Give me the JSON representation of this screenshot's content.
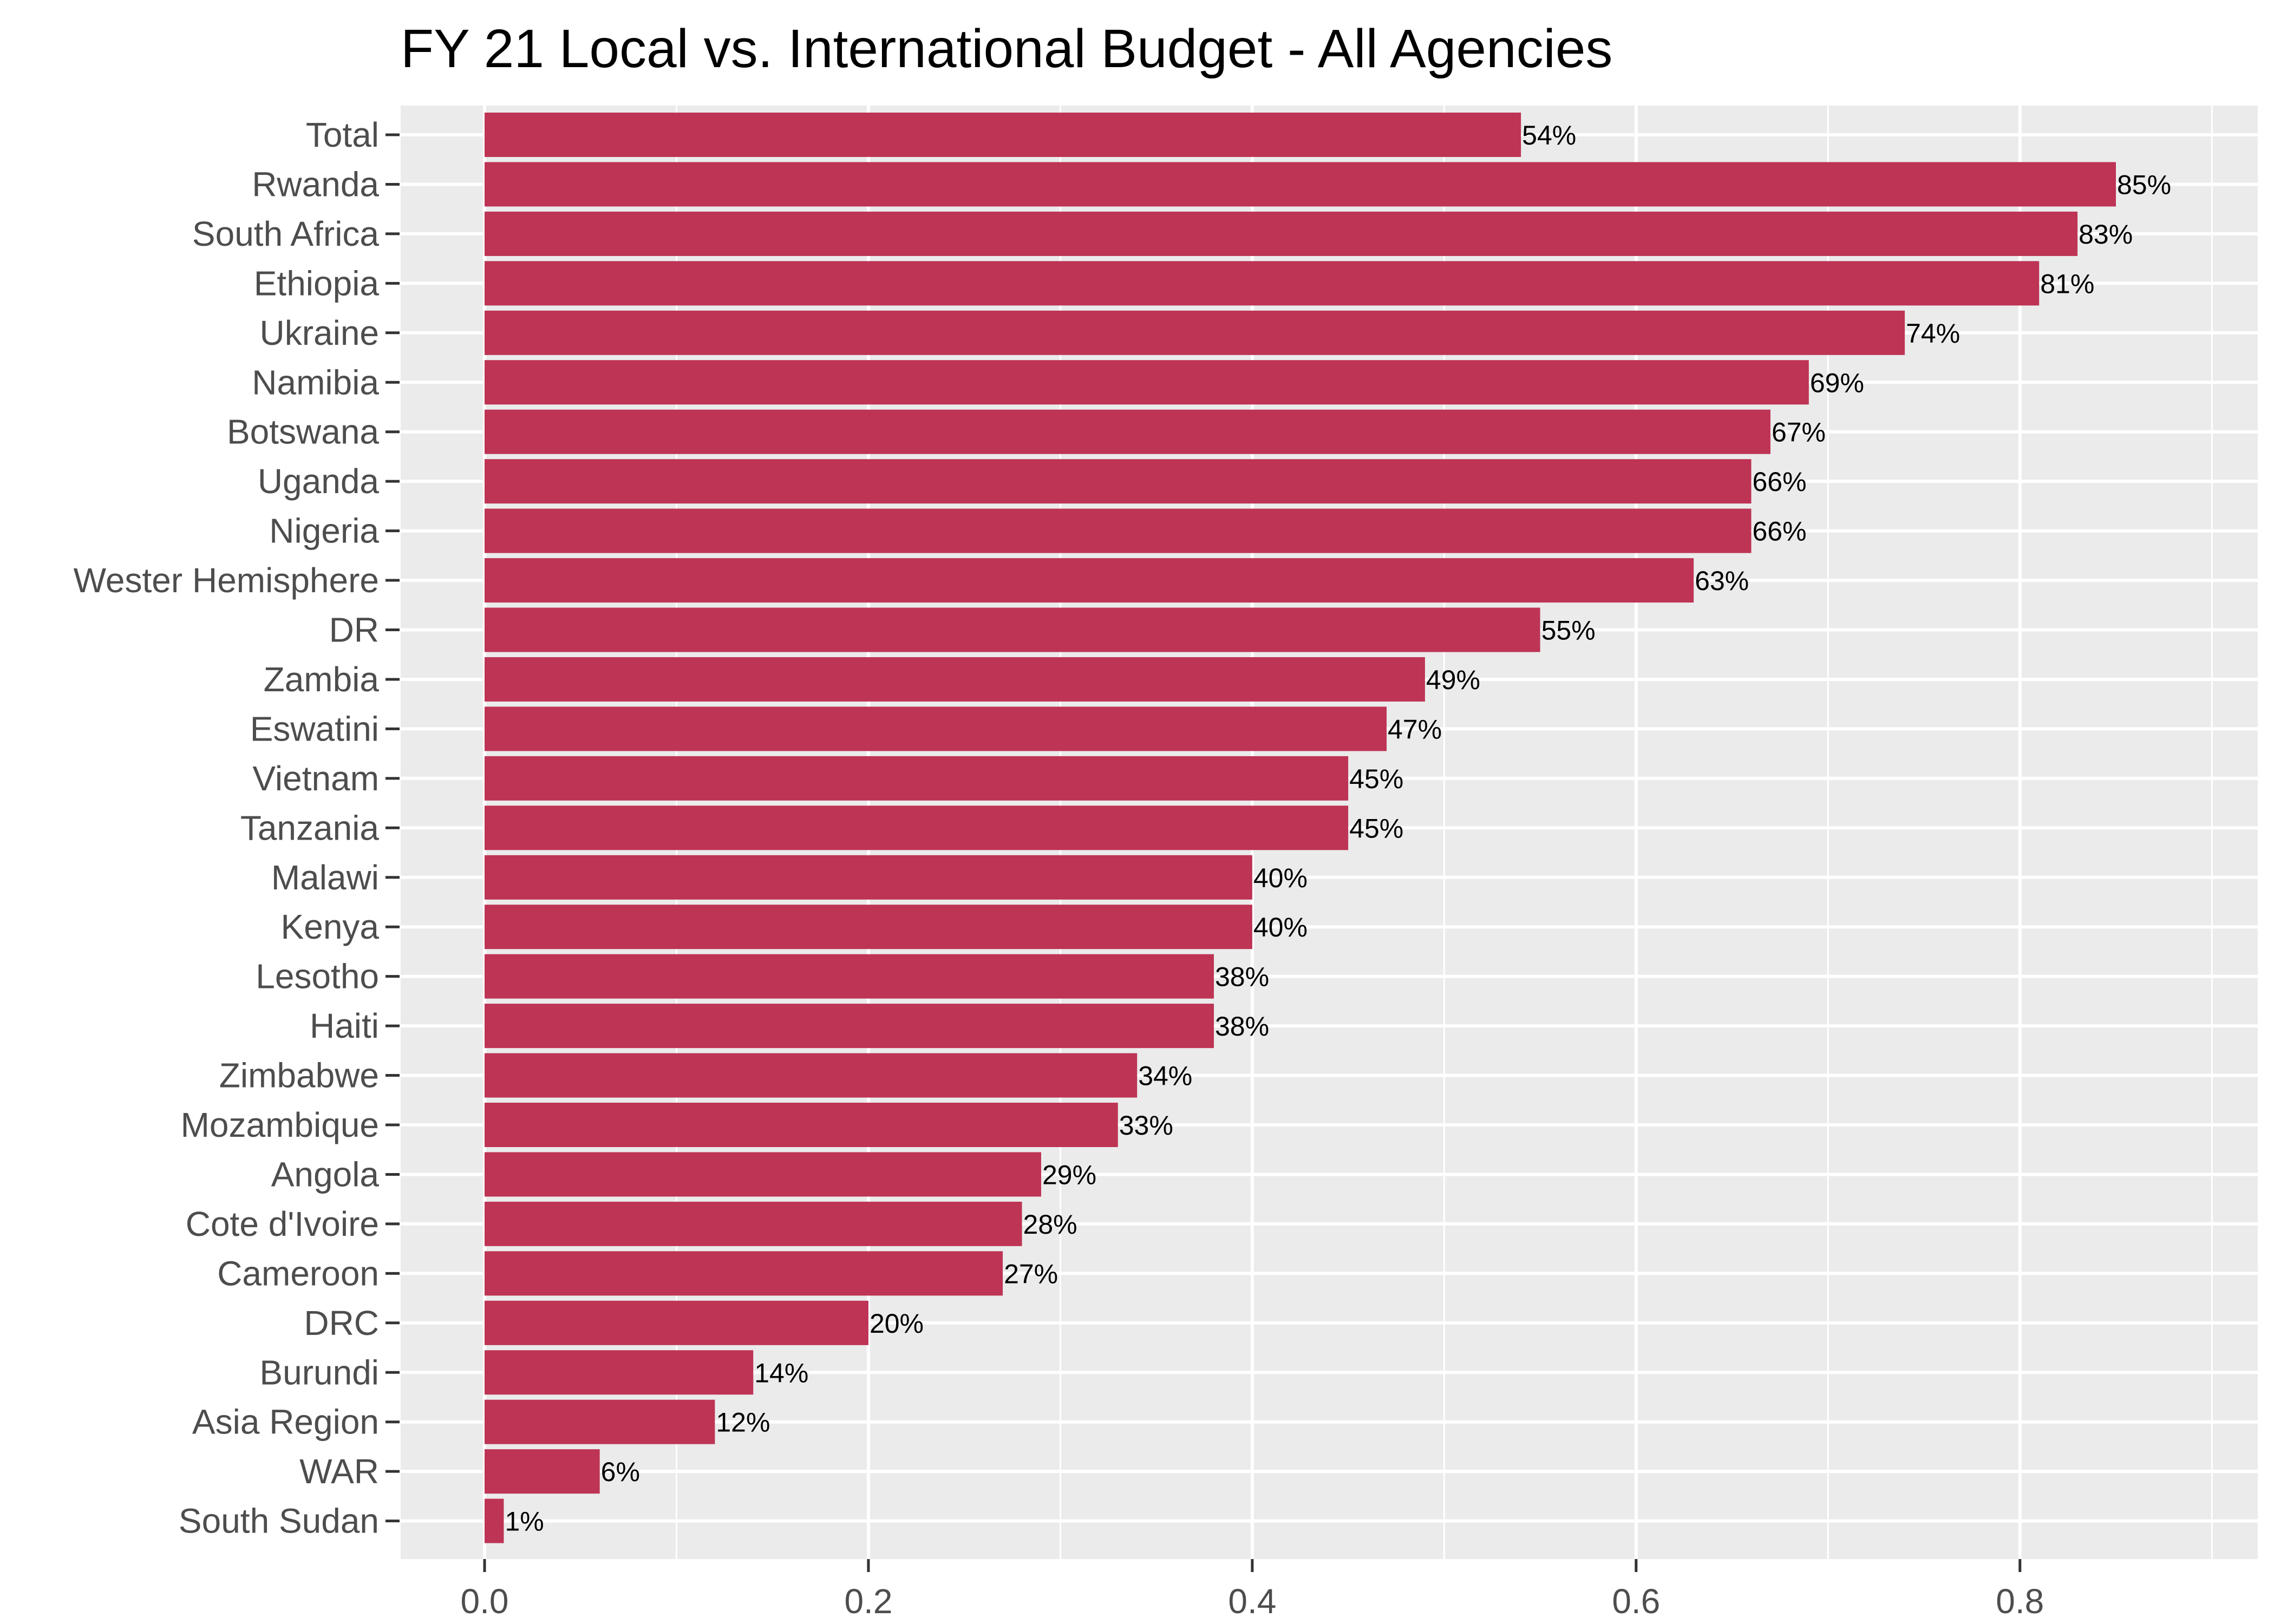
{
  "chart_data": {
    "type": "bar",
    "orientation": "horizontal",
    "title": "FY 21 Local vs. International Budget - All Agencies",
    "xlabel": "",
    "ylabel": "",
    "xlim": [
      -0.045,
      0.888
    ],
    "x_ticks": [
      0.0,
      0.2,
      0.4,
      0.6,
      0.8
    ],
    "x_tick_labels": [
      "0.0",
      "0.2",
      "0.4",
      "0.6",
      "0.8"
    ],
    "grid": true,
    "legend": "none",
    "categories": [
      "Total",
      "Rwanda",
      "South Africa",
      "Ethiopia",
      "Ukraine",
      "Namibia",
      "Botswana",
      "Uganda",
      "Nigeria",
      "Wester Hemisphere",
      "DR",
      "Zambia",
      "Eswatini",
      "Vietnam",
      "Tanzania",
      "Malawi",
      "Kenya",
      "Lesotho",
      "Haiti",
      "Zimbabwe",
      "Mozambique",
      "Angola",
      "Cote d'Ivoire",
      "Cameroon",
      "DRC",
      "Burundi",
      "Asia Region",
      "WAR",
      "South Sudan"
    ],
    "values": [
      0.54,
      0.85,
      0.83,
      0.81,
      0.74,
      0.69,
      0.67,
      0.66,
      0.66,
      0.63,
      0.55,
      0.49,
      0.47,
      0.45,
      0.45,
      0.4,
      0.4,
      0.38,
      0.38,
      0.34,
      0.33,
      0.29,
      0.28,
      0.27,
      0.2,
      0.14,
      0.12,
      0.06,
      0.01
    ],
    "data_labels": [
      "54%",
      "85%",
      "83%",
      "81%",
      "74%",
      "69%",
      "67%",
      "66%",
      "66%",
      "63%",
      "55%",
      "49%",
      "47%",
      "45%",
      "45%",
      "40%",
      "40%",
      "38%",
      "38%",
      "34%",
      "33%",
      "29%",
      "28%",
      "27%",
      "20%",
      "14%",
      "12%",
      "6%",
      "1%"
    ],
    "colors": {
      "bar": "#be3455",
      "panel": "#ebebeb",
      "grid": "#ffffff"
    }
  }
}
